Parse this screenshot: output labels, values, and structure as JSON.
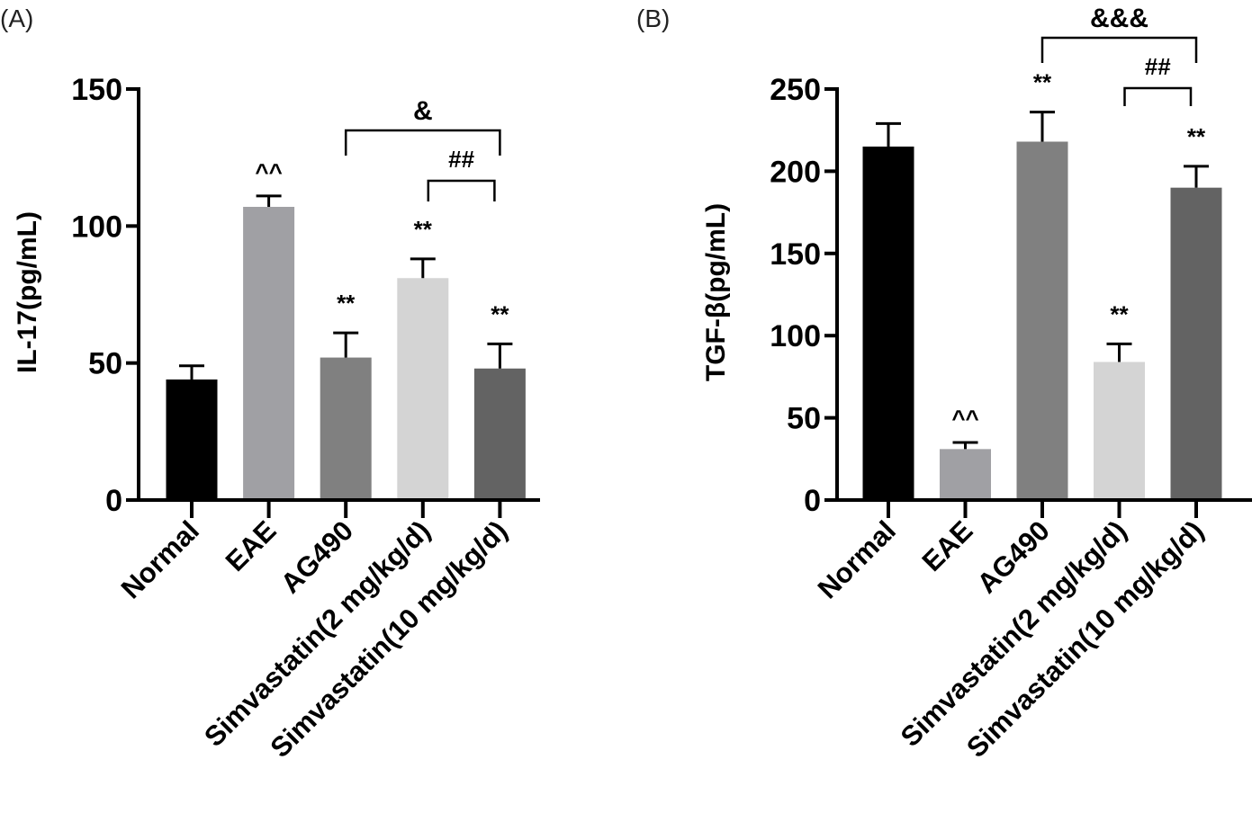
{
  "chart_data": [
    {
      "type": "bar",
      "panel": "(A)",
      "title": "",
      "xlabel": "",
      "ylabel": "IL-17(pg/mL)",
      "ylim": [
        0,
        150
      ],
      "yticks": [
        0,
        50,
        100,
        150
      ],
      "grid": false,
      "categories": [
        "Normal",
        "EAE",
        "AG490",
        "Simvastatin(2 mg/kg/d)",
        "Simvastatin(10 mg/kg/d)"
      ],
      "values": [
        44,
        107,
        52,
        81,
        48
      ],
      "errors": [
        5,
        4,
        9,
        7,
        9
      ],
      "colors": [
        "#000000",
        "#a0a0a4",
        "#808080",
        "#d4d4d4",
        "#636363"
      ],
      "bar_annotations": [
        "",
        "^^",
        "**",
        "**",
        "**"
      ],
      "brackets": [
        {
          "from": 2,
          "to": 4,
          "label": "&",
          "level": 2
        },
        {
          "from": 3,
          "to": 4,
          "label": "##",
          "level": 1
        }
      ]
    },
    {
      "type": "bar",
      "panel": "(B)",
      "title": "",
      "xlabel": "",
      "ylabel": "TGF-β(pg/mL)",
      "ylim": [
        0,
        250
      ],
      "yticks": [
        0,
        50,
        100,
        150,
        200,
        250
      ],
      "grid": false,
      "categories": [
        "Normal",
        "EAE",
        "AG490",
        "Simvastatin(2 mg/kg/d)",
        "Simvastatin(10 mg/kg/d)"
      ],
      "values": [
        215,
        31,
        218,
        84,
        190
      ],
      "errors": [
        14,
        4,
        18,
        11,
        13
      ],
      "colors": [
        "#000000",
        "#a0a0a4",
        "#808080",
        "#d4d4d4",
        "#636363"
      ],
      "bar_annotations": [
        "",
        "^^",
        "**",
        "**",
        "**"
      ],
      "brackets": [
        {
          "from": 2,
          "to": 4,
          "label": "&&&",
          "level": 2
        },
        {
          "from": 3,
          "to": 4,
          "label": "##",
          "level": 1
        }
      ]
    }
  ]
}
